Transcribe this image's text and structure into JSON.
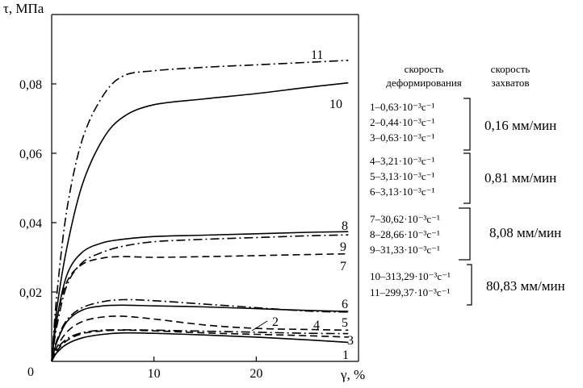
{
  "chart_data": {
    "type": "line",
    "ylabel": "τ, МПа",
    "xlabel": "γ, %",
    "origin_label": "0",
    "xlim": [
      0,
      30
    ],
    "ylim": [
      0,
      0.1
    ],
    "xticks": [
      {
        "v": 10,
        "label": "10"
      },
      {
        "v": 20,
        "label": "20"
      }
    ],
    "yticks": [
      {
        "v": 0.02,
        "label": "0,02"
      },
      {
        "v": 0.04,
        "label": "0,04"
      },
      {
        "v": 0.06,
        "label": "0,06"
      },
      {
        "v": 0.08,
        "label": "0,08"
      }
    ],
    "grid": false,
    "series": [
      {
        "name": "1",
        "style": "solid",
        "x": [
          0,
          0.5,
          1.5,
          3,
          5,
          7,
          10,
          15,
          20,
          25,
          29
        ],
        "y": [
          0,
          0.0025,
          0.005,
          0.0068,
          0.0078,
          0.0082,
          0.0081,
          0.0076,
          0.007,
          0.0062,
          0.0055
        ]
      },
      {
        "name": "2",
        "style": "dashed",
        "x": [
          0,
          0.5,
          1.5,
          3,
          5,
          7,
          10,
          15,
          20,
          25,
          29
        ],
        "y": [
          0,
          0.003,
          0.006,
          0.008,
          0.0088,
          0.009,
          0.0088,
          0.0082,
          0.0078,
          0.0074,
          0.007
        ]
      },
      {
        "name": "3",
        "style": "dashdot",
        "x": [
          0,
          0.5,
          1.5,
          3,
          5,
          7,
          10,
          15,
          20,
          25,
          29
        ],
        "y": [
          0,
          0.0035,
          0.0065,
          0.0083,
          0.009,
          0.0091,
          0.009,
          0.0087,
          0.0084,
          0.0081,
          0.008
        ]
      },
      {
        "name": "4",
        "style": "dashed",
        "x": [
          0,
          0.5,
          1.5,
          3,
          5,
          7,
          10,
          15,
          20,
          25,
          29
        ],
        "y": [
          0,
          0.004,
          0.0085,
          0.0115,
          0.0128,
          0.013,
          0.0122,
          0.0105,
          0.0095,
          0.0092,
          0.009
        ]
      },
      {
        "name": "5",
        "style": "dashdot",
        "x": [
          0,
          0.5,
          1.5,
          3,
          5,
          7,
          10,
          15,
          20,
          25,
          29
        ],
        "y": [
          0,
          0.006,
          0.012,
          0.0155,
          0.0172,
          0.0178,
          0.0175,
          0.0165,
          0.0155,
          0.0145,
          0.0142
        ]
      },
      {
        "name": "6",
        "style": "solid",
        "x": [
          0,
          0.5,
          1.5,
          3,
          5,
          7,
          10,
          15,
          20,
          25,
          29
        ],
        "y": [
          0,
          0.0055,
          0.0115,
          0.0148,
          0.016,
          0.0162,
          0.016,
          0.0157,
          0.0152,
          0.0147,
          0.0144
        ]
      },
      {
        "name": "7",
        "style": "dashed",
        "x": [
          0,
          0.5,
          1.5,
          3,
          5,
          7,
          10,
          15,
          20,
          25,
          29
        ],
        "y": [
          0,
          0.012,
          0.023,
          0.028,
          0.0298,
          0.0302,
          0.03,
          0.0302,
          0.0305,
          0.0308,
          0.031
        ]
      },
      {
        "name": "8",
        "style": "solid",
        "x": [
          0,
          0.5,
          1.5,
          3,
          5,
          7,
          10,
          15,
          20,
          25,
          29
        ],
        "y": [
          0,
          0.012,
          0.025,
          0.0315,
          0.0342,
          0.0352,
          0.036,
          0.0364,
          0.0368,
          0.0372,
          0.0374
        ]
      },
      {
        "name": "9",
        "style": "dashdot",
        "x": [
          0,
          0.5,
          1.5,
          3,
          5,
          7,
          10,
          15,
          20,
          25,
          29
        ],
        "y": [
          0,
          0.01,
          0.022,
          0.0285,
          0.0315,
          0.0332,
          0.0345,
          0.0352,
          0.0357,
          0.0362,
          0.0365
        ]
      },
      {
        "name": "10",
        "style": "solid",
        "x": [
          0,
          0.5,
          1.5,
          3,
          5,
          7,
          10,
          15,
          20,
          25,
          29
        ],
        "y": [
          0,
          0.015,
          0.033,
          0.051,
          0.064,
          0.0705,
          0.074,
          0.0757,
          0.0772,
          0.079,
          0.0803
        ]
      },
      {
        "name": "11",
        "style": "dashdot",
        "x": [
          0,
          0.5,
          1.5,
          3,
          5,
          7,
          10,
          15,
          20,
          25,
          29
        ],
        "y": [
          0,
          0.019,
          0.044,
          0.064,
          0.0765,
          0.0823,
          0.0838,
          0.0848,
          0.0855,
          0.0862,
          0.0868
        ]
      }
    ]
  },
  "legend": {
    "col1_header": [
      "скорость",
      "деформирования"
    ],
    "col2_header": [
      "скорость",
      "захватов"
    ],
    "groups": [
      {
        "entries": [
          "1–0,63·10⁻³с⁻¹",
          "2–0,44·10⁻³с⁻¹",
          "3–0,63·10⁻³с⁻¹"
        ],
        "speed": "0,16 мм/мин"
      },
      {
        "entries": [
          "4–3,21·10⁻³с⁻¹",
          "5–3,13·10⁻³с⁻¹",
          "6–3,13·10⁻³с⁻¹"
        ],
        "speed": "0,81 мм/мин"
      },
      {
        "entries": [
          "7–30,62·10⁻³с⁻¹",
          "8–28,66·10⁻³с⁻¹",
          "9–31,33·10⁻³с⁻¹"
        ],
        "speed": "8,08 мм/мин"
      },
      {
        "entries": [
          "10–313,29·10⁻³с⁻¹",
          "11–299,37·10⁻³с⁻¹"
        ],
        "speed": "80,83 мм/мин"
      }
    ]
  }
}
